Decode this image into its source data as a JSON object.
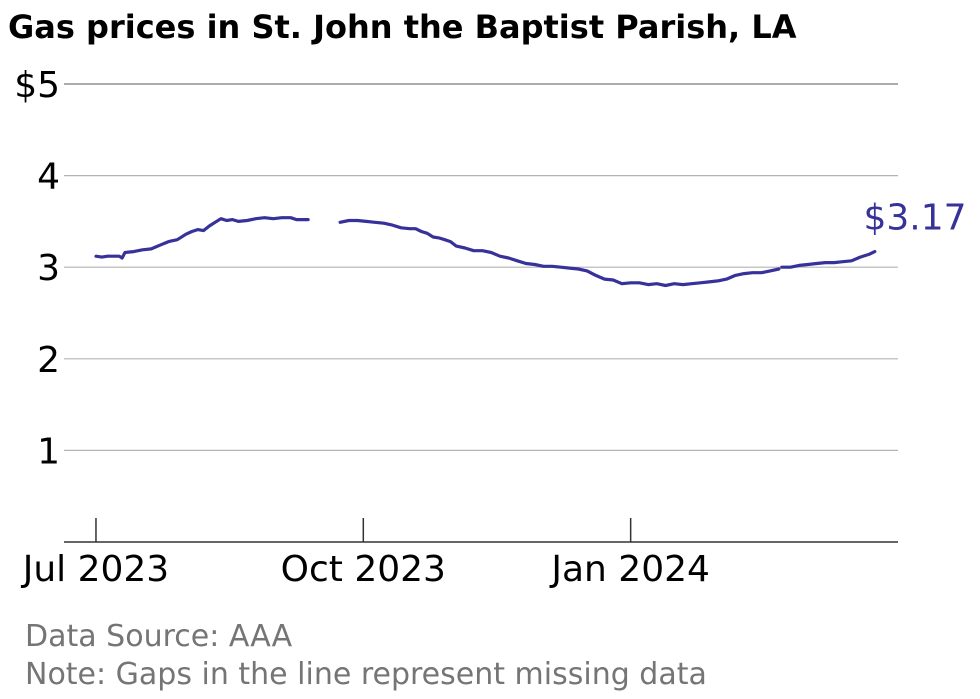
{
  "chart_data": {
    "type": "line",
    "title": "Gas prices in St. John the Baptist Parish, LA",
    "xlabel": "",
    "ylabel": "",
    "ylim": [
      0,
      5
    ],
    "y_ticks": [
      {
        "value": 1,
        "label": "1"
      },
      {
        "value": 2,
        "label": "2"
      },
      {
        "value": 3,
        "label": "3"
      },
      {
        "value": 4,
        "label": "4"
      },
      {
        "value": 5,
        "label": "$5"
      }
    ],
    "x_ticks": [
      {
        "date": "2023-07-01",
        "label": "Jul 2023"
      },
      {
        "date": "2023-10-01",
        "label": "Oct 2023"
      },
      {
        "date": "2024-01-01",
        "label": "Jan 2024"
      }
    ],
    "xlim": [
      "2023-06-20",
      "2024-04-02"
    ],
    "grid": true,
    "end_label": "$3.17",
    "color": "#37319a",
    "series": [
      {
        "segments": [
          [
            [
              "2023-07-01",
              3.12
            ],
            [
              "2023-07-03",
              3.11
            ],
            [
              "2023-07-05",
              3.12
            ],
            [
              "2023-07-07",
              3.12
            ],
            [
              "2023-07-09",
              3.12
            ],
            [
              "2023-07-10",
              3.1
            ],
            [
              "2023-07-11",
              3.16
            ],
            [
              "2023-07-14",
              3.17
            ],
            [
              "2023-07-17",
              3.19
            ],
            [
              "2023-07-20",
              3.2
            ],
            [
              "2023-07-23",
              3.24
            ],
            [
              "2023-07-26",
              3.28
            ],
            [
              "2023-07-29",
              3.3
            ],
            [
              "2023-08-01",
              3.36
            ],
            [
              "2023-08-03",
              3.39
            ],
            [
              "2023-08-05",
              3.41
            ],
            [
              "2023-08-07",
              3.4
            ],
            [
              "2023-08-09",
              3.45
            ],
            [
              "2023-08-11",
              3.49
            ],
            [
              "2023-08-13",
              3.53
            ],
            [
              "2023-08-15",
              3.51
            ],
            [
              "2023-08-17",
              3.52
            ],
            [
              "2023-08-19",
              3.5
            ],
            [
              "2023-08-22",
              3.51
            ],
            [
              "2023-08-25",
              3.53
            ],
            [
              "2023-08-28",
              3.54
            ],
            [
              "2023-08-31",
              3.53
            ],
            [
              "2023-09-03",
              3.54
            ],
            [
              "2023-09-06",
              3.54
            ],
            [
              "2023-09-08",
              3.52
            ],
            [
              "2023-09-10",
              3.52
            ],
            [
              "2023-09-12",
              3.52
            ]
          ],
          [
            [
              "2023-09-23",
              3.49
            ],
            [
              "2023-09-26",
              3.51
            ],
            [
              "2023-09-29",
              3.51
            ],
            [
              "2023-10-02",
              3.5
            ],
            [
              "2023-10-05",
              3.49
            ],
            [
              "2023-10-08",
              3.48
            ],
            [
              "2023-10-11",
              3.46
            ],
            [
              "2023-10-14",
              3.43
            ],
            [
              "2023-10-17",
              3.42
            ],
            [
              "2023-10-19",
              3.42
            ],
            [
              "2023-10-21",
              3.39
            ],
            [
              "2023-10-23",
              3.37
            ],
            [
              "2023-10-25",
              3.33
            ],
            [
              "2023-10-27",
              3.32
            ],
            [
              "2023-10-29",
              3.3
            ],
            [
              "2023-10-31",
              3.28
            ],
            [
              "2023-11-02",
              3.23
            ],
            [
              "2023-11-05",
              3.21
            ],
            [
              "2023-11-08",
              3.18
            ],
            [
              "2023-11-11",
              3.18
            ],
            [
              "2023-11-14",
              3.16
            ],
            [
              "2023-11-17",
              3.12
            ],
            [
              "2023-11-20",
              3.1
            ],
            [
              "2023-11-23",
              3.07
            ],
            [
              "2023-11-26",
              3.04
            ],
            [
              "2023-11-29",
              3.03
            ],
            [
              "2023-12-02",
              3.01
            ],
            [
              "2023-12-05",
              3.01
            ],
            [
              "2023-12-08",
              3.0
            ],
            [
              "2023-12-11",
              2.99
            ],
            [
              "2023-12-14",
              2.98
            ],
            [
              "2023-12-17",
              2.96
            ],
            [
              "2023-12-20",
              2.91
            ],
            [
              "2023-12-23",
              2.87
            ],
            [
              "2023-12-26",
              2.86
            ],
            [
              "2023-12-29",
              2.82
            ],
            [
              "2024-01-01",
              2.83
            ],
            [
              "2024-01-04",
              2.83
            ],
            [
              "2024-01-07",
              2.81
            ],
            [
              "2024-01-10",
              2.82
            ],
            [
              "2024-01-13",
              2.8
            ],
            [
              "2024-01-16",
              2.82
            ],
            [
              "2024-01-19",
              2.81
            ],
            [
              "2024-01-22",
              2.82
            ],
            [
              "2024-01-25",
              2.83
            ],
            [
              "2024-01-28",
              2.84
            ],
            [
              "2024-01-31",
              2.85
            ],
            [
              "2024-02-03",
              2.87
            ],
            [
              "2024-02-06",
              2.91
            ],
            [
              "2024-02-09",
              2.93
            ],
            [
              "2024-02-12",
              2.94
            ],
            [
              "2024-02-15",
              2.94
            ],
            [
              "2024-02-18",
              2.96
            ],
            [
              "2024-02-21",
              2.98
            ]
          ],
          [
            [
              "2024-02-22",
              3.0
            ],
            [
              "2024-02-25",
              3.0
            ],
            [
              "2024-02-28",
              3.02
            ],
            [
              "2024-03-02",
              3.03
            ],
            [
              "2024-03-05",
              3.04
            ],
            [
              "2024-03-08",
              3.05
            ],
            [
              "2024-03-11",
              3.05
            ],
            [
              "2024-03-14",
              3.06
            ],
            [
              "2024-03-17",
              3.07
            ],
            [
              "2024-03-20",
              3.11
            ],
            [
              "2024-03-23",
              3.14
            ],
            [
              "2024-03-25",
              3.17
            ]
          ]
        ]
      }
    ]
  },
  "footer": {
    "source": "Data Source: AAA",
    "note": "Note: Gaps in the line represent missing data"
  }
}
